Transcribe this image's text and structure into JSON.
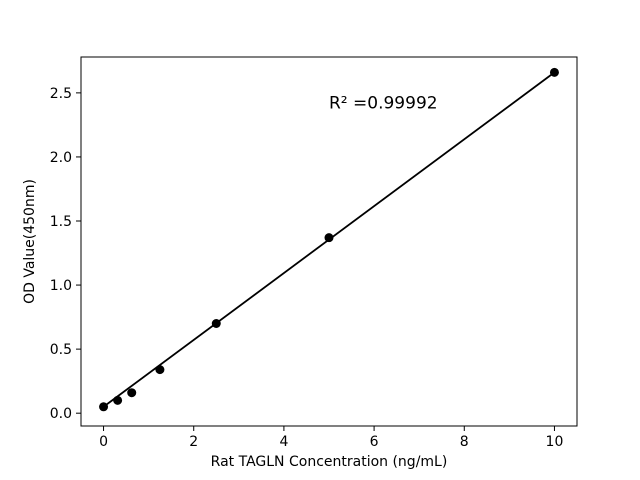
{
  "chart_data": {
    "type": "scatter",
    "title": "",
    "xlabel": "Rat TAGLN Concentration (ng/mL)",
    "ylabel": "OD Value(450nm)",
    "points": {
      "x": [
        0,
        0.3125,
        0.625,
        1.25,
        2.5,
        5,
        10
      ],
      "y": [
        0.05,
        0.1,
        0.16,
        0.34,
        0.7,
        1.37,
        2.66
      ]
    },
    "fit_line": {
      "x1": 0,
      "y1": 0.05,
      "x2": 10,
      "y2": 2.66
    },
    "annotation": {
      "text": "R² =0.99992",
      "x": 5.0,
      "y": 2.38
    },
    "xlim": [
      -0.5,
      10.5
    ],
    "ylim": [
      -0.1,
      2.78
    ],
    "xticks": {
      "values": [
        0,
        2,
        4,
        6,
        8,
        10
      ],
      "labels": [
        "0",
        "2",
        "4",
        "6",
        "8",
        "10"
      ]
    },
    "yticks": {
      "values": [
        0.0,
        0.5,
        1.0,
        1.5,
        2.0,
        2.5
      ],
      "labels": [
        "0.0",
        "0.5",
        "1.0",
        "1.5",
        "2.0",
        "2.5"
      ]
    },
    "grid": false,
    "legend": null,
    "colors": {
      "marker": "#000000",
      "line": "#000000",
      "axis": "#000000",
      "text": "#000000",
      "background": "#ffffff"
    }
  }
}
